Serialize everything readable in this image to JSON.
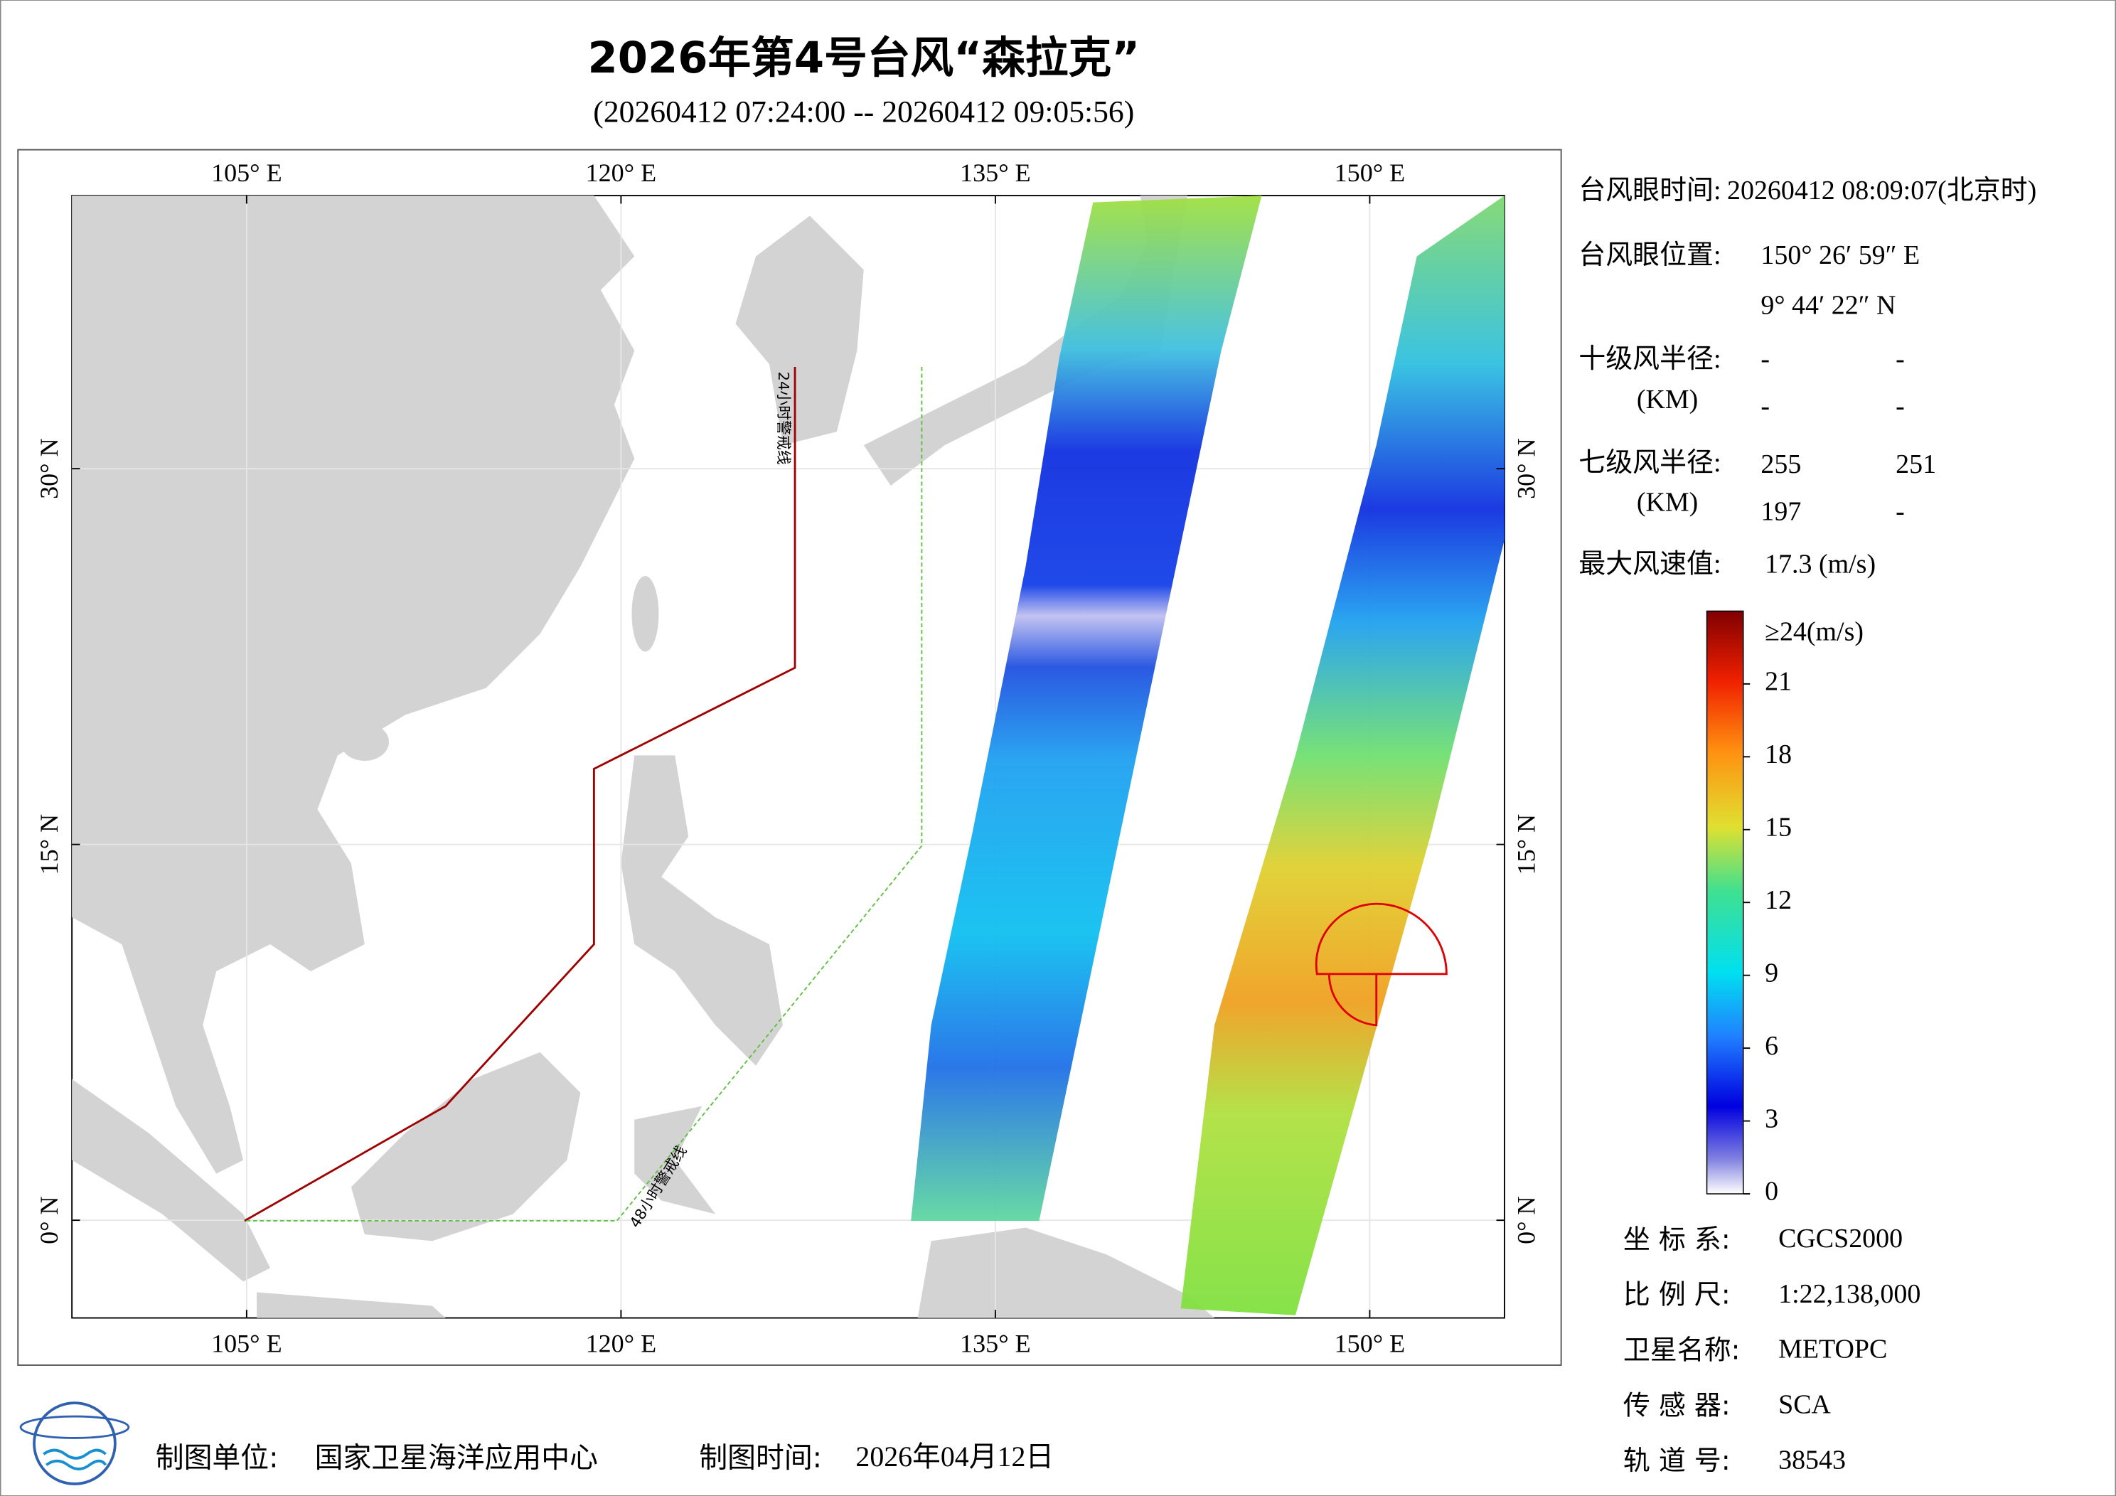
{
  "title": "2026年第4号台风“森拉克”",
  "subtitle": "(20260412 07:24:00 -- 20260412 09:05:56)",
  "map": {
    "xlim": [
      98,
      155.4
    ],
    "ylim": [
      -3.9,
      40.9
    ],
    "lon_ticks": [
      {
        "value": 105,
        "label": "105° E"
      },
      {
        "value": 120,
        "label": "120° E"
      },
      {
        "value": 135,
        "label": "135° E"
      },
      {
        "value": 150,
        "label": "150° E"
      }
    ],
    "lat_ticks": [
      {
        "value": 0,
        "label": "0° N"
      },
      {
        "value": 15,
        "label": "15° N"
      },
      {
        "value": 30,
        "label": "30° N"
      }
    ],
    "warning_24h": "24小时警戒线",
    "warning_48h": "48小时警戒线"
  },
  "info": {
    "eye_time_label": "台风眼时间:",
    "eye_time": "20260412 08:09:07(北京时)",
    "eye_pos_label": "台风眼位置:",
    "eye_lon": "150° 26′ 59″ E",
    "eye_lat": "9° 44′ 22″ N",
    "r10_label": "十级风半径:",
    "km": "(KM)",
    "r10": [
      "-",
      "-",
      "-",
      "-"
    ],
    "r7_label": "七级风半径:",
    "r7": [
      "255",
      "251",
      "197",
      "-"
    ],
    "max_wind_label": "最大风速值:",
    "max_wind": "17.3 (m/s)"
  },
  "colorbar": {
    "range": [
      0,
      24
    ],
    "ticks": [
      0,
      3,
      6,
      9,
      12,
      15,
      18,
      21
    ],
    "top_label": "≥24(m/s)"
  },
  "meta": [
    {
      "label": "坐 标 系:",
      "value": "CGCS2000"
    },
    {
      "label": "比 例 尺:",
      "value": "1:22,138,000"
    },
    {
      "label": "卫星名称:",
      "value": "METOPC"
    },
    {
      "label": "传 感 器:",
      "value": "SCA"
    },
    {
      "label": "轨 道 号:",
      "value": "38543"
    }
  ],
  "footer": {
    "unit_label": "制图单位:",
    "unit": "国家卫星海洋应用中心",
    "time_label": "制图时间:",
    "time": "2026年04月12日"
  }
}
